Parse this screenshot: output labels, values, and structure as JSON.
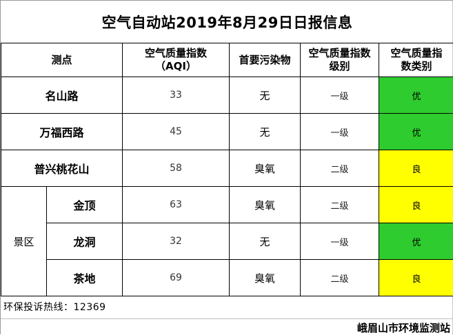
{
  "title": "空气自动站2019年8月29日日报信息",
  "headers": {
    "site": "测点",
    "aqi_line1": "空气质量指数",
    "aqi_line2": "（AQI）",
    "pollutant": "首要污染物",
    "level_line1": "空气质量指数",
    "level_line2": "级别",
    "category_line1": "空气质量指",
    "category_line2": "数类别"
  },
  "zone_label": "景区",
  "rows": [
    {
      "site": "名山路",
      "aqi": "33",
      "pollutant": "无",
      "level": "一级",
      "category": "优",
      "color": "#2ecc2e"
    },
    {
      "site": "万福西路",
      "aqi": "45",
      "pollutant": "无",
      "level": "一级",
      "category": "优",
      "color": "#2ecc2e"
    },
    {
      "site": "普兴桃花山",
      "aqi": "58",
      "pollutant": "臭氧",
      "level": "二级",
      "category": "良",
      "color": "#ffff00"
    },
    {
      "site": "金顶",
      "aqi": "63",
      "pollutant": "臭氧",
      "level": "二级",
      "category": "良",
      "color": "#ffff00"
    },
    {
      "site": "龙洞",
      "aqi": "32",
      "pollutant": "无",
      "level": "一级",
      "category": "优",
      "color": "#2ecc2e"
    },
    {
      "site": "茶地",
      "aqi": "69",
      "pollutant": "臭氧",
      "level": "二级",
      "category": "良",
      "color": "#ffff00"
    }
  ],
  "hotline": "环保投诉热线：12369",
  "organization": "峨眉山市环境监测站"
}
